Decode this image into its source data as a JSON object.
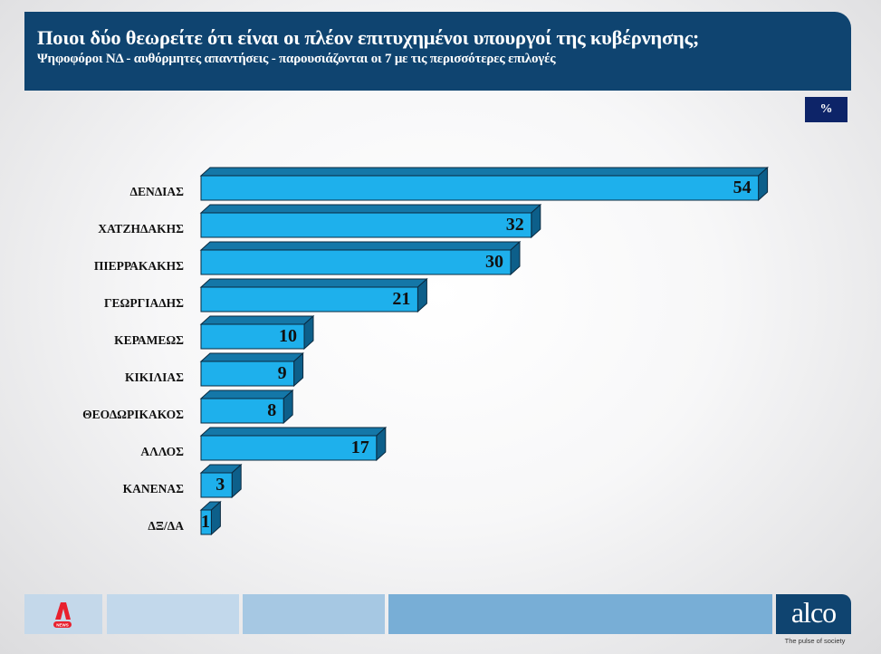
{
  "header": {
    "title": "Ποιοι δύο θεωρείτε ότι είναι οι πλέον επιτυχημένοι υπουργοί της κυβέρνησης;",
    "subtitle": "Ψηφοφόροι ΝΔ - αυθόρμητες απαντήσεις - παρουσιάζονται οι 7 με τις περισσότερες επιλογές"
  },
  "unit_label": "%",
  "footer": {
    "left_logo_text": "NEWS",
    "brand": "alco",
    "tagline": "The pulse of society"
  },
  "colors": {
    "header_bg": "#0f4470",
    "bar_front": "#1eb0ec",
    "bar_top": "#1477a8",
    "bar_side": "#0d5f8a",
    "unit_box": "#0d2468"
  },
  "chart_data": {
    "type": "bar",
    "orientation": "horizontal",
    "style": "3d",
    "title": "Ποιοι δύο θεωρείτε ότι είναι οι πλέον επιτυχημένοι υπουργοί της κυβέρνησης;",
    "subtitle": "Ψηφοφόροι ΝΔ - αυθόρμητες απαντήσεις - παρουσιάζονται οι 7 με τις περισσότερες επιλογές",
    "xlabel": "",
    "ylabel": "",
    "unit": "%",
    "grid": false,
    "legend": null,
    "categories": [
      "ΔΕΝΔΙΑΣ",
      "ΧΑΤΖΗΔΑΚΗΣ",
      "ΠΙΕΡΡΑΚΑΚΗΣ",
      "ΓΕΩΡΓΙΑΔΗΣ",
      "ΚΕΡΑΜΕΩΣ",
      "ΚΙΚΙΛΙΑΣ",
      "ΘΕΟΔΩΡΙΚΑΚΟΣ",
      "ΑΛΛΟΣ",
      "ΚΑΝΕΝΑΣ",
      "ΔΞ/ΔΑ"
    ],
    "values": [
      54,
      32,
      30,
      21,
      10,
      9,
      8,
      17,
      3,
      1
    ],
    "xlim": [
      0,
      54
    ]
  }
}
